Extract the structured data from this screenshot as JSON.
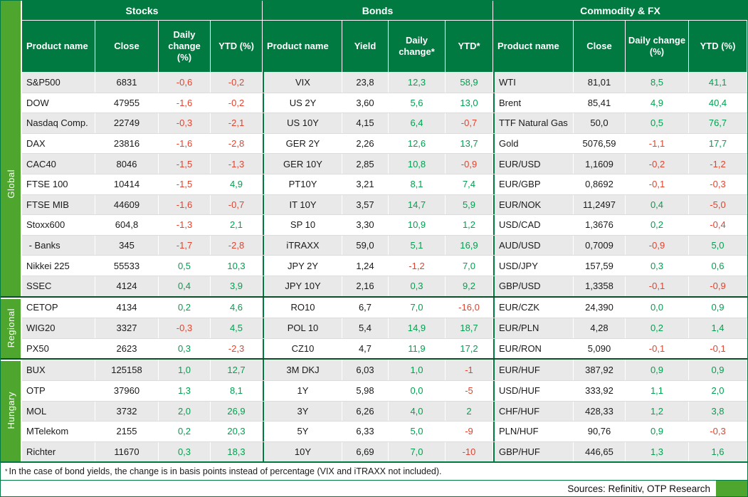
{
  "sections": [
    {
      "title": "Stocks",
      "columns": [
        "Product name",
        "Close",
        "Daily change (%)",
        "YTD (%)"
      ]
    },
    {
      "title": "Bonds",
      "columns": [
        "Product name",
        "Yield",
        "Daily change*",
        "YTD*"
      ]
    },
    {
      "title": "Commodity & FX",
      "columns": [
        "Product name",
        "Close",
        "Daily change (%)",
        "YTD (%)"
      ]
    }
  ],
  "colors": {
    "header_green": "#007A40",
    "side_green": "#4FA62F",
    "positive": "#00A14F",
    "negative": "#E0442E",
    "row_alt": "#E9E9E9"
  },
  "groups": [
    {
      "label": "Global",
      "rows": [
        {
          "stocks": {
            "name": "S&P500",
            "close": "6831",
            "daily": "-0,6",
            "ytd": "-0,2"
          },
          "bonds": {
            "name": "VIX",
            "yield": "23,8",
            "daily": "12,3",
            "ytd": "58,9"
          },
          "fx": {
            "name": "WTI",
            "close": "81,01",
            "daily": "8,5",
            "ytd": "41,1"
          }
        },
        {
          "stocks": {
            "name": "DOW",
            "close": "47955",
            "daily": "-1,6",
            "ytd": "-0,2"
          },
          "bonds": {
            "name": "US 2Y",
            "yield": "3,60",
            "daily": "5,6",
            "ytd": "13,0"
          },
          "fx": {
            "name": "Brent",
            "close": "85,41",
            "daily": "4,9",
            "ytd": "40,4"
          }
        },
        {
          "stocks": {
            "name": "Nasdaq Comp.",
            "close": "22749",
            "daily": "-0,3",
            "ytd": "-2,1"
          },
          "bonds": {
            "name": "US 10Y",
            "yield": "4,15",
            "daily": "6,4",
            "ytd": "-0,7"
          },
          "fx": {
            "name": "TTF Natural Gas",
            "close": "50,0",
            "daily": "0,5",
            "ytd": "76,7"
          }
        },
        {
          "stocks": {
            "name": "DAX",
            "close": "23816",
            "daily": "-1,6",
            "ytd": "-2,8"
          },
          "bonds": {
            "name": "GER 2Y",
            "yield": "2,26",
            "daily": "12,6",
            "ytd": "13,7"
          },
          "fx": {
            "name": "Gold",
            "close": "5076,59",
            "daily": "-1,1",
            "ytd": "17,7"
          }
        },
        {
          "stocks": {
            "name": "CAC40",
            "close": "8046",
            "daily": "-1,5",
            "ytd": "-1,3"
          },
          "bonds": {
            "name": "GER 10Y",
            "yield": "2,85",
            "daily": "10,8",
            "ytd": "-0,9"
          },
          "fx": {
            "name": "EUR/USD",
            "close": "1,1609",
            "daily": "-0,2",
            "ytd": "-1,2"
          }
        },
        {
          "stocks": {
            "name": "FTSE 100",
            "close": "10414",
            "daily": "-1,5",
            "ytd": "4,9"
          },
          "bonds": {
            "name": "PT10Y",
            "yield": "3,21",
            "daily": "8,1",
            "ytd": "7,4"
          },
          "fx": {
            "name": "EUR/GBP",
            "close": "0,8692",
            "daily": "-0,1",
            "ytd": "-0,3"
          }
        },
        {
          "stocks": {
            "name": "FTSE MIB",
            "close": "44609",
            "daily": "-1,6",
            "ytd": "-0,7"
          },
          "bonds": {
            "name": "IT 10Y",
            "yield": "3,57",
            "daily": "14,7",
            "ytd": "5,9"
          },
          "fx": {
            "name": "EUR/NOK",
            "close": "11,2497",
            "daily": "0,4",
            "ytd": "-5,0"
          }
        },
        {
          "stocks": {
            "name": "Stoxx600",
            "close": "604,8",
            "daily": "-1,3",
            "ytd": "2,1"
          },
          "bonds": {
            "name": "SP 10",
            "yield": "3,30",
            "daily": "10,9",
            "ytd": "1,2"
          },
          "fx": {
            "name": "USD/CAD",
            "close": "1,3676",
            "daily": "0,2",
            "ytd": "-0,4"
          }
        },
        {
          "stocks": {
            "name": " - Banks",
            "close": "345",
            "daily": "-1,7",
            "ytd": "-2,8"
          },
          "bonds": {
            "name": "iTRAXX",
            "yield": "59,0",
            "daily": "5,1",
            "ytd": "16,9"
          },
          "fx": {
            "name": "AUD/USD",
            "close": "0,7009",
            "daily": "-0,9",
            "ytd": "5,0"
          }
        },
        {
          "stocks": {
            "name": "Nikkei 225",
            "close": "55533",
            "daily": "0,5",
            "ytd": "10,3"
          },
          "bonds": {
            "name": "JPY 2Y",
            "yield": "1,24",
            "daily": "-1,2",
            "ytd": "7,0"
          },
          "fx": {
            "name": "USD/JPY",
            "close": "157,59",
            "daily": "0,3",
            "ytd": "0,6"
          }
        },
        {
          "stocks": {
            "name": "SSEC",
            "close": "4124",
            "daily": "0,4",
            "ytd": "3,9"
          },
          "bonds": {
            "name": "JPY 10Y",
            "yield": "2,16",
            "daily": "0,3",
            "ytd": "9,2"
          },
          "fx": {
            "name": "GBP/USD",
            "close": "1,3358",
            "daily": "-0,1",
            "ytd": "-0,9"
          }
        }
      ]
    },
    {
      "label": "Regional",
      "rows": [
        {
          "stocks": {
            "name": "CETOP",
            "close": "4134",
            "daily": "0,2",
            "ytd": "4,6"
          },
          "bonds": {
            "name": "RO10",
            "yield": "6,7",
            "daily": "7,0",
            "ytd": "-16,0"
          },
          "fx": {
            "name": "EUR/CZK",
            "close": "24,390",
            "daily": "0,0",
            "ytd": "0,9"
          }
        },
        {
          "stocks": {
            "name": "WIG20",
            "close": "3327",
            "daily": "-0,3",
            "ytd": "4,5"
          },
          "bonds": {
            "name": "POL 10",
            "yield": "5,4",
            "daily": "14,9",
            "ytd": "18,7"
          },
          "fx": {
            "name": "EUR/PLN",
            "close": "4,28",
            "daily": "0,2",
            "ytd": "1,4"
          }
        },
        {
          "stocks": {
            "name": "PX50",
            "close": "2623",
            "daily": "0,3",
            "ytd": "-2,3"
          },
          "bonds": {
            "name": "CZ10",
            "yield": "4,7",
            "daily": "11,9",
            "ytd": "17,2"
          },
          "fx": {
            "name": "EUR/RON",
            "close": "5,090",
            "daily": "-0,1",
            "ytd": "-0,1"
          }
        }
      ]
    },
    {
      "label": "Hungary",
      "rows": [
        {
          "stocks": {
            "name": "BUX",
            "close": "125158",
            "daily": "1,0",
            "ytd": "12,7"
          },
          "bonds": {
            "name": "3M DKJ",
            "yield": "6,03",
            "daily": "1,0",
            "ytd": "-1"
          },
          "fx": {
            "name": "EUR/HUF",
            "close": "387,92",
            "daily": "0,9",
            "ytd": "0,9"
          }
        },
        {
          "stocks": {
            "name": "OTP",
            "close": "37960",
            "daily": "1,3",
            "ytd": "8,1"
          },
          "bonds": {
            "name": "1Y",
            "yield": "5,98",
            "daily": "0,0",
            "ytd": "-5"
          },
          "fx": {
            "name": "USD/HUF",
            "close": "333,92",
            "daily": "1,1",
            "ytd": "2,0"
          }
        },
        {
          "stocks": {
            "name": "MOL",
            "close": "3732",
            "daily": "2,0",
            "ytd": "26,9"
          },
          "bonds": {
            "name": "3Y",
            "yield": "6,26",
            "daily": "4,0",
            "ytd": "2"
          },
          "fx": {
            "name": "CHF/HUF",
            "close": "428,33",
            "daily": "1,2",
            "ytd": "3,8"
          }
        },
        {
          "stocks": {
            "name": "MTelekom",
            "close": "2155",
            "daily": "0,2",
            "ytd": "20,3"
          },
          "bonds": {
            "name": "5Y",
            "yield": "6,33",
            "daily": "5,0",
            "ytd": "-9"
          },
          "fx": {
            "name": "PLN/HUF",
            "close": "90,76",
            "daily": "0,9",
            "ytd": "-0,3"
          }
        },
        {
          "stocks": {
            "name": "Richter",
            "close": "11670",
            "daily": "0,3",
            "ytd": "18,3"
          },
          "bonds": {
            "name": "10Y",
            "yield": "6,69",
            "daily": "7,0",
            "ytd": "-10"
          },
          "fx": {
            "name": "GBP/HUF",
            "close": "446,65",
            "daily": "1,3",
            "ytd": "1,6"
          }
        }
      ]
    }
  ],
  "report": {
    "footnote_star": "*",
    "footnote": "In the case of bond yields, the change is in basis points instead of percentage (VIX and iTRAXX not included).",
    "sources": "Sources: Refinitiv, OTP Research"
  }
}
